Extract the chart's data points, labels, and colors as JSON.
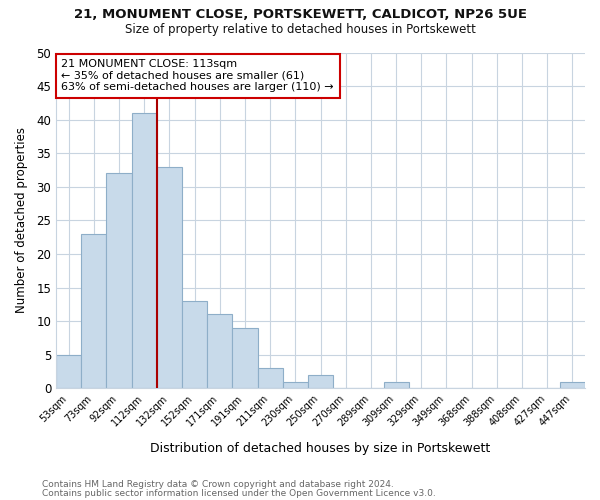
{
  "title_line1": "21, MONUMENT CLOSE, PORTSKEWETT, CALDICOT, NP26 5UE",
  "title_line2": "Size of property relative to detached houses in Portskewett",
  "xlabel": "Distribution of detached houses by size in Portskewett",
  "ylabel": "Number of detached properties",
  "bar_labels": [
    "53sqm",
    "73sqm",
    "92sqm",
    "112sqm",
    "132sqm",
    "152sqm",
    "171sqm",
    "191sqm",
    "211sqm",
    "230sqm",
    "250sqm",
    "270sqm",
    "289sqm",
    "309sqm",
    "329sqm",
    "349sqm",
    "368sqm",
    "388sqm",
    "408sqm",
    "427sqm",
    "447sqm"
  ],
  "bar_values": [
    5,
    23,
    32,
    41,
    33,
    13,
    11,
    9,
    3,
    1,
    2,
    0,
    0,
    1,
    0,
    0,
    0,
    0,
    0,
    0,
    1
  ],
  "bar_color": "#c8daea",
  "bar_edge_color": "#8eaec8",
  "highlight_line_color": "#aa0000",
  "annotation_title": "21 MONUMENT CLOSE: 113sqm",
  "annotation_line1": "← 35% of detached houses are smaller (61)",
  "annotation_line2": "63% of semi-detached houses are larger (110) →",
  "annotation_box_color": "#ffffff",
  "annotation_box_edge": "#cc0000",
  "ylim": [
    0,
    50
  ],
  "yticks": [
    0,
    5,
    10,
    15,
    20,
    25,
    30,
    35,
    40,
    45,
    50
  ],
  "footer_line1": "Contains HM Land Registry data © Crown copyright and database right 2024.",
  "footer_line2": "Contains public sector information licensed under the Open Government Licence v3.0.",
  "bg_color": "#ffffff",
  "plot_bg_color": "#ffffff",
  "grid_color": "#c8d4e0"
}
